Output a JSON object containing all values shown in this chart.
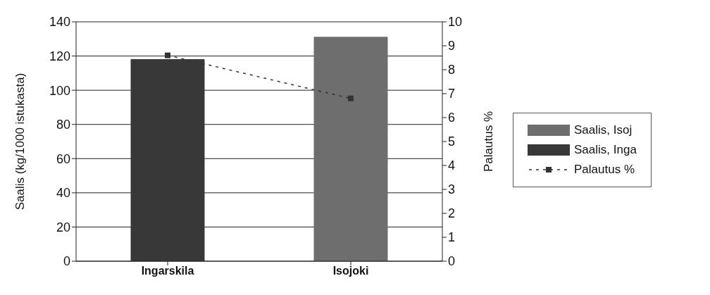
{
  "chart_data": {
    "type": "bar",
    "categories": [
      "Ingarskila",
      "Isojoki"
    ],
    "ylabel": "Saalis (kg/1000 istukasta)",
    "y2label": "Palautus %",
    "series": [
      {
        "name": "Saalis, Isoj",
        "color": "#6e6e6e",
        "values": [
          null,
          131
        ]
      },
      {
        "name": "Saalis, Inga",
        "color": "#383838",
        "values": [
          118,
          null
        ]
      },
      {
        "name": "Palautus %",
        "type": "line",
        "axis": "y2",
        "color": "#333333",
        "marker": "square",
        "line_style": "dashed",
        "values": [
          8.6,
          6.8
        ]
      }
    ],
    "ylim": [
      0,
      140
    ],
    "yticks": [
      0,
      20,
      40,
      60,
      80,
      100,
      120,
      140
    ],
    "y2lim": [
      0,
      10
    ],
    "y2ticks": [
      0,
      1,
      2,
      3,
      4,
      5,
      6,
      7,
      8,
      9,
      10
    ],
    "grid": "y",
    "legend": "right"
  }
}
